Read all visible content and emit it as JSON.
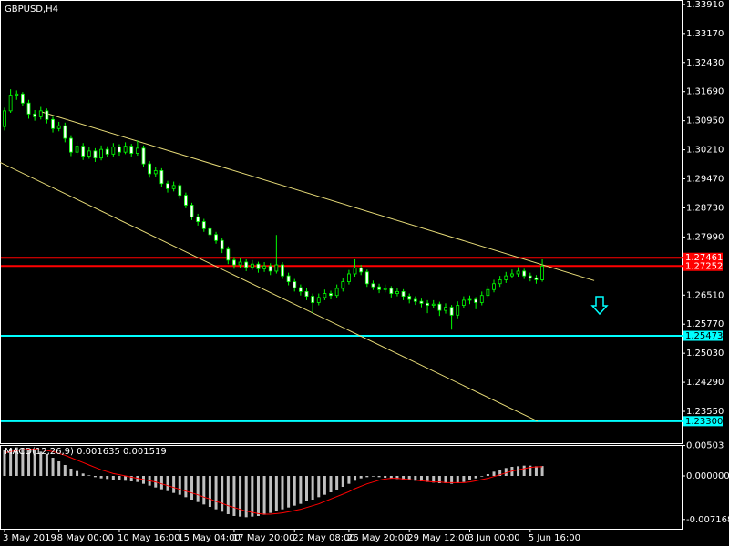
{
  "chart_data": [
    {
      "type": "candlestick",
      "title": "GBPUSD,H4",
      "color": "#00ff00",
      "up_fill": "#000000",
      "down_fill": "#ffffff",
      "categories": [
        "3 May 2019",
        null,
        null,
        null,
        null,
        null,
        null,
        null,
        null,
        "8 May 00:00",
        null,
        null,
        null,
        null,
        null,
        null,
        null,
        null,
        null,
        "10 May 16:00",
        null,
        null,
        null,
        null,
        null,
        null,
        null,
        null,
        null,
        "15 May 04:00",
        null,
        null,
        null,
        null,
        null,
        null,
        null,
        null,
        "17 May 20:00",
        null,
        null,
        null,
        null,
        null,
        null,
        null,
        null,
        null,
        "22 May 08:00",
        null,
        null,
        null,
        null,
        null,
        null,
        null,
        null,
        "26 May 20:00",
        null,
        null,
        null,
        null,
        null,
        null,
        null,
        null,
        null,
        "29 May 12:00",
        null,
        null,
        null,
        null,
        null,
        null,
        null,
        null,
        null,
        "3 Jun 00:00",
        null,
        null,
        null,
        null,
        null,
        null,
        null,
        null,
        null,
        "5 Jun 16:00",
        null,
        null
      ],
      "ohlc": [
        [
          1.308,
          1.3128,
          1.307,
          1.312
        ],
        [
          1.312,
          1.3175,
          1.3115,
          1.316
        ],
        [
          1.316,
          1.3172,
          1.3148,
          1.3163
        ],
        [
          1.3163,
          1.3168,
          1.3132,
          1.314
        ],
        [
          1.314,
          1.3148,
          1.31,
          1.3112
        ],
        [
          1.3112,
          1.3122,
          1.3095,
          1.3105
        ],
        [
          1.3105,
          1.313,
          1.3098,
          1.312
        ],
        [
          1.312,
          1.3126,
          1.3088,
          1.3098
        ],
        [
          1.3098,
          1.3105,
          1.3065,
          1.3075
        ],
        [
          1.3075,
          1.3092,
          1.3068,
          1.3082
        ],
        [
          1.3082,
          1.309,
          1.304,
          1.305
        ],
        [
          1.305,
          1.3058,
          1.3005,
          1.3015
        ],
        [
          1.3015,
          1.3042,
          1.3008,
          1.303
        ],
        [
          1.303,
          1.3038,
          1.2995,
          1.3005
        ],
        [
          1.3005,
          1.3028,
          1.2998,
          1.3018
        ],
        [
          1.3018,
          1.3025,
          1.299,
          1.3
        ],
        [
          1.3,
          1.3032,
          1.2994,
          1.3022
        ],
        [
          1.3022,
          1.303,
          1.3002,
          1.301
        ],
        [
          1.301,
          1.3038,
          1.3004,
          1.3028
        ],
        [
          1.3028,
          1.3035,
          1.3006,
          1.3015
        ],
        [
          1.3015,
          1.304,
          1.301,
          1.303
        ],
        [
          1.303,
          1.3036,
          1.3004,
          1.3012
        ],
        [
          1.3012,
          1.3045,
          1.3006,
          1.3025
        ],
        [
          1.3025,
          1.3032,
          1.2978,
          1.2985
        ],
        [
          1.2985,
          1.2992,
          1.295,
          1.296
        ],
        [
          1.296,
          1.2978,
          1.2952,
          1.2968
        ],
        [
          1.2968,
          1.2974,
          1.2926,
          1.2935
        ],
        [
          1.2935,
          1.2942,
          1.2912,
          1.2922
        ],
        [
          1.2922,
          1.294,
          1.2915,
          1.293
        ],
        [
          1.293,
          1.2936,
          1.2896,
          1.2905
        ],
        [
          1.2905,
          1.2912,
          1.2872,
          1.288
        ],
        [
          1.288,
          1.2886,
          1.2842,
          1.285
        ],
        [
          1.285,
          1.2858,
          1.2828,
          1.2838
        ],
        [
          1.2838,
          1.2845,
          1.2812,
          1.282
        ],
        [
          1.282,
          1.2828,
          1.2796,
          1.2805
        ],
        [
          1.2805,
          1.2812,
          1.2782,
          1.279
        ],
        [
          1.279,
          1.2796,
          1.2758,
          1.2768
        ],
        [
          1.2768,
          1.2775,
          1.273,
          1.274
        ],
        [
          1.274,
          1.2748,
          1.2718,
          1.2728
        ],
        [
          1.2728,
          1.2745,
          1.272,
          1.2735
        ],
        [
          1.2735,
          1.2742,
          1.2712,
          1.2722
        ],
        [
          1.2722,
          1.274,
          1.2715,
          1.273
        ],
        [
          1.273,
          1.2736,
          1.2708,
          1.2718
        ],
        [
          1.2718,
          1.2735,
          1.271,
          1.2725
        ],
        [
          1.2725,
          1.2732,
          1.2702,
          1.2712
        ],
        [
          1.2712,
          1.2804,
          1.2706,
          1.2728
        ],
        [
          1.2728,
          1.2735,
          1.2692,
          1.27
        ],
        [
          1.27,
          1.2708,
          1.2676,
          1.2685
        ],
        [
          1.2685,
          1.2692,
          1.266,
          1.267
        ],
        [
          1.267,
          1.2678,
          1.265,
          1.266
        ],
        [
          1.266,
          1.2668,
          1.2638,
          1.2648
        ],
        [
          1.2648,
          1.2655,
          1.2605,
          1.2632
        ],
        [
          1.2632,
          1.2655,
          1.2625,
          1.2645
        ],
        [
          1.2645,
          1.2665,
          1.2638,
          1.2655
        ],
        [
          1.2655,
          1.2662,
          1.264,
          1.265
        ],
        [
          1.265,
          1.2678,
          1.2644,
          1.2668
        ],
        [
          1.2668,
          1.2695,
          1.266,
          1.2685
        ],
        [
          1.2685,
          1.2715,
          1.2678,
          1.2705
        ],
        [
          1.2705,
          1.2742,
          1.2698,
          1.272
        ],
        [
          1.272,
          1.2728,
          1.2702,
          1.271
        ],
        [
          1.271,
          1.2716,
          1.2672,
          1.268
        ],
        [
          1.268,
          1.2688,
          1.2664,
          1.2672
        ],
        [
          1.2672,
          1.268,
          1.2656,
          1.2665
        ],
        [
          1.2665,
          1.2678,
          1.2658,
          1.2668
        ],
        [
          1.2668,
          1.2674,
          1.2645,
          1.2655
        ],
        [
          1.2655,
          1.267,
          1.2648,
          1.266
        ],
        [
          1.266,
          1.2666,
          1.2638,
          1.2648
        ],
        [
          1.2648,
          1.2655,
          1.263,
          1.264
        ],
        [
          1.264,
          1.2648,
          1.2626,
          1.2635
        ],
        [
          1.2635,
          1.2642,
          1.262,
          1.263
        ],
        [
          1.263,
          1.2638,
          1.2605,
          1.2625
        ],
        [
          1.2625,
          1.2638,
          1.2618,
          1.2628
        ],
        [
          1.2628,
          1.2634,
          1.2598,
          1.2612
        ],
        [
          1.2612,
          1.263,
          1.2604,
          1.262
        ],
        [
          1.262,
          1.2626,
          1.2563,
          1.26
        ],
        [
          1.26,
          1.2635,
          1.2592,
          1.2625
        ],
        [
          1.2625,
          1.2648,
          1.2618,
          1.2638
        ],
        [
          1.2638,
          1.265,
          1.2628,
          1.264
        ],
        [
          1.264,
          1.2646,
          1.2615,
          1.2632
        ],
        [
          1.2632,
          1.266,
          1.2625,
          1.265
        ],
        [
          1.265,
          1.2675,
          1.2642,
          1.2665
        ],
        [
          1.2665,
          1.269,
          1.2658,
          1.268
        ],
        [
          1.268,
          1.27,
          1.2672,
          1.269
        ],
        [
          1.269,
          1.271,
          1.2682,
          1.27
        ],
        [
          1.27,
          1.2716,
          1.2694,
          1.2705
        ],
        [
          1.2705,
          1.2722,
          1.2698,
          1.2712
        ],
        [
          1.2712,
          1.2718,
          1.2692,
          1.27
        ],
        [
          1.27,
          1.2708,
          1.2686,
          1.2695
        ],
        [
          1.2695,
          1.2702,
          1.268,
          1.269
        ],
        [
          1.269,
          1.2742,
          1.2685,
          1.2725
        ]
      ],
      "ylim": [
        1.2274,
        1.34
      ],
      "yticks": [
        {
          "value": 1.3391,
          "label": "1.33910"
        },
        {
          "value": 1.3317,
          "label": "1.33170"
        },
        {
          "value": 1.3243,
          "label": "1.32430"
        },
        {
          "value": 1.3169,
          "label": "1.31690"
        },
        {
          "value": 1.3095,
          "label": "1.30950"
        },
        {
          "value": 1.3021,
          "label": "1.30210"
        },
        {
          "value": 1.2947,
          "label": "1.29470"
        },
        {
          "value": 1.2873,
          "label": "1.28730"
        },
        {
          "value": 1.2799,
          "label": "1.27990"
        },
        {
          "value": 1.2651,
          "label": "1.26510"
        },
        {
          "value": 1.2577,
          "label": "1.25770"
        },
        {
          "value": 1.2503,
          "label": "1.25030"
        },
        {
          "value": 1.2429,
          "label": "1.24290"
        },
        {
          "value": 1.2355,
          "label": "1.23550"
        }
      ],
      "hlines": [
        {
          "value": 1.27461,
          "label": "1.27461",
          "color": "#ff0000"
        },
        {
          "value": 1.27252,
          "label": "1.27252",
          "color": "#ff0000"
        },
        {
          "value": 1.25473,
          "label": "1.25473",
          "color": "#00ffff"
        },
        {
          "value": 1.233,
          "label": "1.23300",
          "color": "#00ffff"
        }
      ],
      "trendlines": [
        {
          "color": "#e8dc78",
          "points": [
            [
              6,
              1.3118
            ],
            [
              97.6,
              1.2688
            ]
          ]
        },
        {
          "color": "#e8dc78",
          "points": [
            [
              -0.75,
              1.2989
            ],
            [
              88.2,
              1.233
            ]
          ]
        }
      ]
    },
    {
      "type": "macd",
      "title": "MACD(12,26,9) 0.001635 0.001519",
      "ylim": [
        -0.0087,
        0.0051
      ],
      "yticks": [
        0.00503,
        {
          "value": 0,
          "label": "0.000000"
        },
        -0.007168
      ],
      "series": [
        {
          "style": "bar",
          "color": "#c0c0c0",
          "values": [
            0.0042,
            0.0045,
            0.0047,
            0.0046,
            0.0044,
            0.0042,
            0.004,
            0.0036,
            0.003,
            0.0024,
            0.0018,
            0.0012,
            0.0008,
            0.0004,
            0.0001,
            -0.0002,
            -0.0004,
            -0.0005,
            -0.0006,
            -0.0007,
            -0.0008,
            -0.0009,
            -0.001,
            -0.0013,
            -0.0016,
            -0.0019,
            -0.0022,
            -0.0025,
            -0.0028,
            -0.0031,
            -0.0035,
            -0.0039,
            -0.0043,
            -0.0047,
            -0.0051,
            -0.0055,
            -0.0059,
            -0.0063,
            -0.0066,
            -0.0067,
            -0.0068,
            -0.0067,
            -0.0066,
            -0.0064,
            -0.0061,
            -0.0058,
            -0.0055,
            -0.0052,
            -0.0049,
            -0.0046,
            -0.0042,
            -0.0039,
            -0.0035,
            -0.0031,
            -0.0027,
            -0.0023,
            -0.0018,
            -0.0013,
            -0.0008,
            -0.0004,
            -0.0002,
            -0.0001,
            -0.0002,
            -0.0003,
            -0.0004,
            -0.0005,
            -0.0006,
            -0.0007,
            -0.0008,
            -0.0009,
            -0.001,
            -0.0011,
            -0.0012,
            -0.0012,
            -0.0013,
            -0.0012,
            -0.001,
            -0.0007,
            -0.0004,
            -0.0001,
            0.0003,
            0.0007,
            0.001,
            0.0013,
            0.0015,
            0.0016,
            0.0017,
            0.0017,
            0.0016,
            0.001635
          ]
        },
        {
          "style": "line",
          "color": "#ff0000",
          "values": [
            0.0038,
            0.004,
            0.0042,
            0.0043,
            0.0044,
            0.0044,
            0.0043,
            0.0042,
            0.004,
            0.0037,
            0.0034,
            0.003,
            0.0026,
            0.0022,
            0.0018,
            0.0014,
            0.001,
            0.0007,
            0.0004,
            0.0002,
            0.0,
            -0.0002,
            -0.0004,
            -0.0006,
            -0.0008,
            -0.001,
            -0.0013,
            -0.0016,
            -0.0019,
            -0.0022,
            -0.0025,
            -0.0028,
            -0.0031,
            -0.0035,
            -0.0038,
            -0.0042,
            -0.0045,
            -0.0049,
            -0.0052,
            -0.0055,
            -0.0058,
            -0.006,
            -0.0062,
            -0.0063,
            -0.0063,
            -0.0062,
            -0.0061,
            -0.0059,
            -0.0057,
            -0.0055,
            -0.0052,
            -0.0049,
            -0.0046,
            -0.0042,
            -0.0038,
            -0.0034,
            -0.003,
            -0.0026,
            -0.0021,
            -0.0017,
            -0.0013,
            -0.001,
            -0.0007,
            -0.0005,
            -0.0004,
            -0.0004,
            -0.0005,
            -0.0006,
            -0.0007,
            -0.0008,
            -0.0009,
            -0.001,
            -0.001,
            -0.0011,
            -0.0011,
            -0.0011,
            -0.0011,
            -0.001,
            -0.0008,
            -0.0006,
            -0.0004,
            -0.0001,
            0.0002,
            0.0005,
            0.0008,
            0.001,
            0.0012,
            0.0014,
            0.0015,
            0.001519
          ]
        }
      ]
    }
  ]
}
